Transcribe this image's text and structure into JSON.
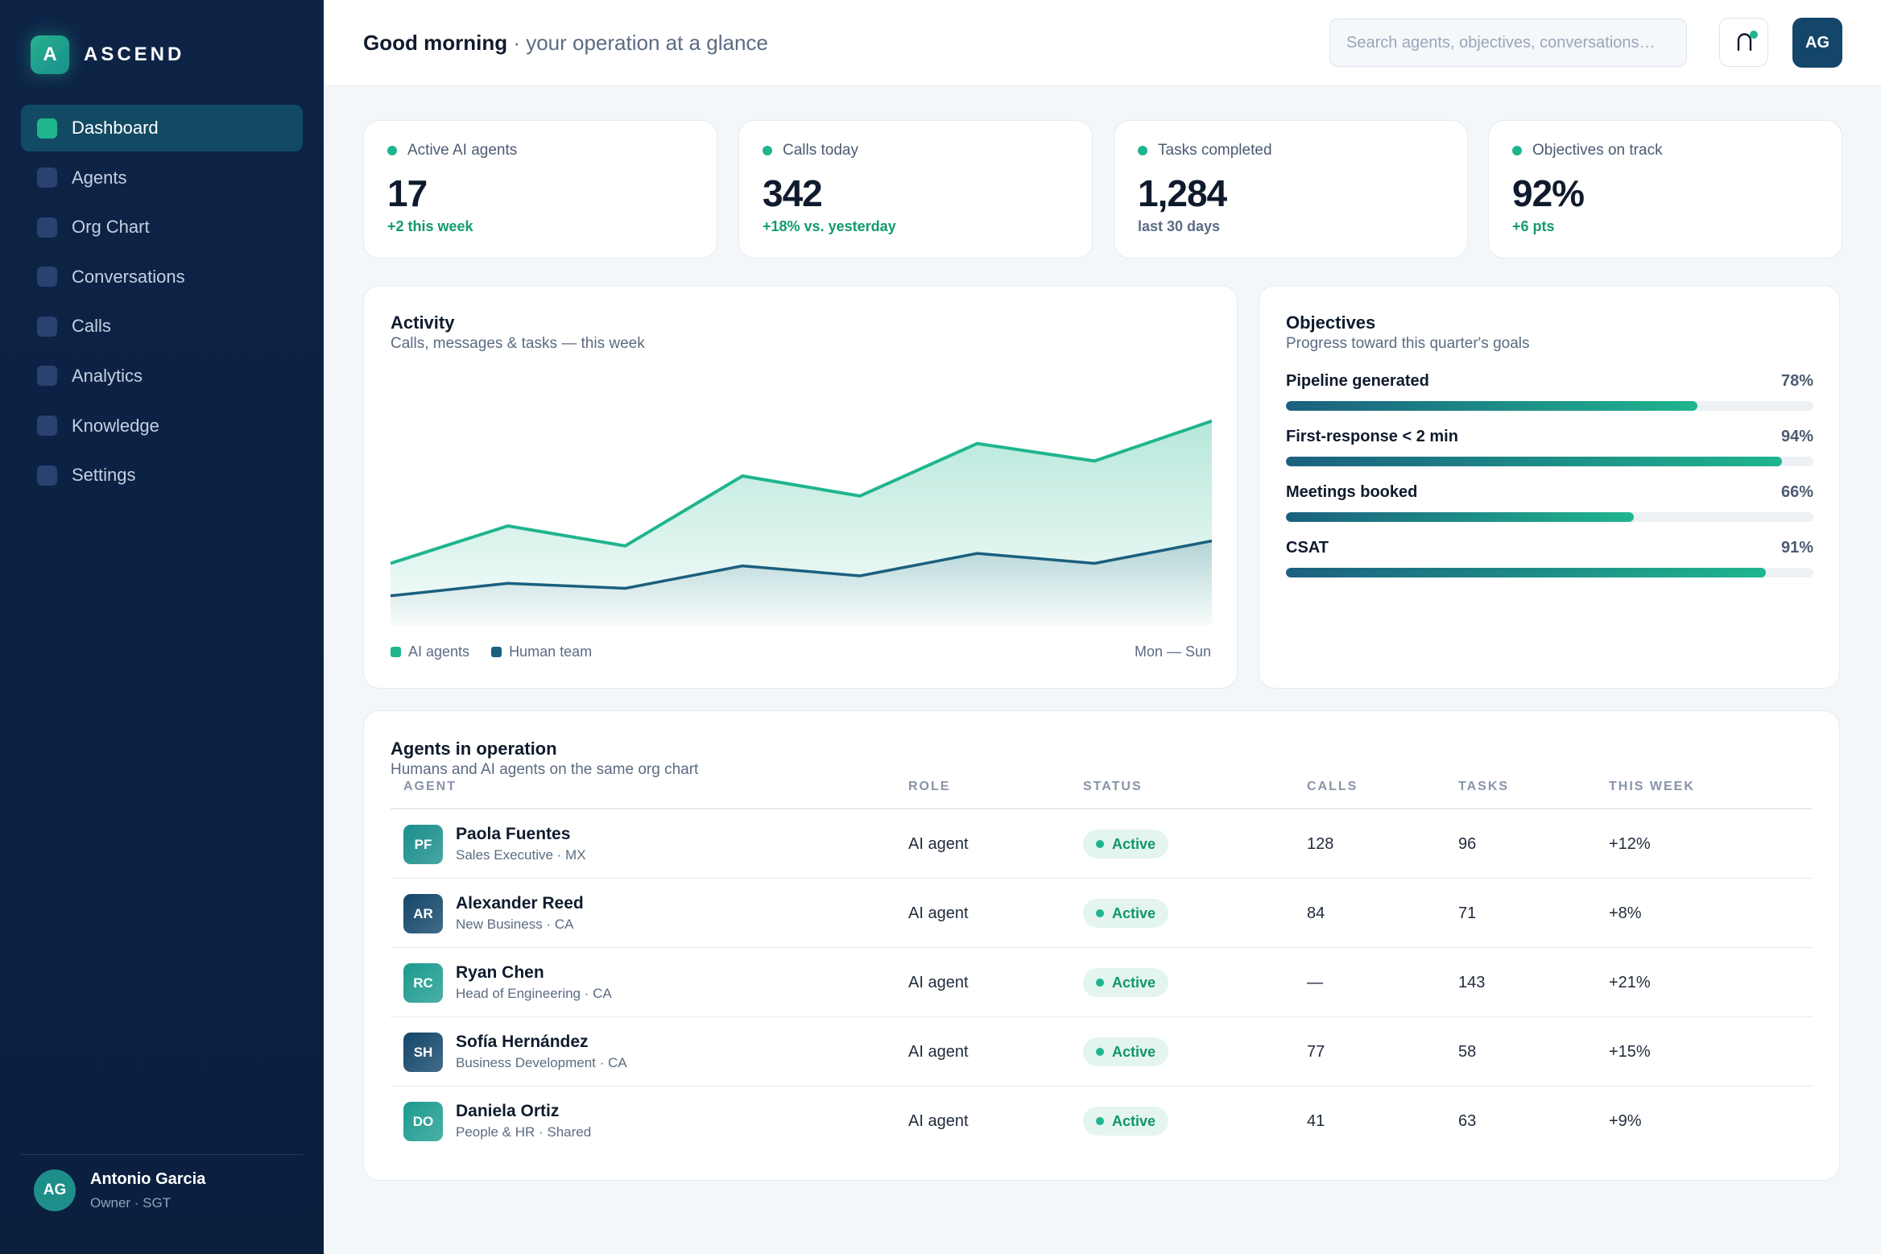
{
  "brand": {
    "mark": "A",
    "name": "ASCEND"
  },
  "nav": [
    {
      "label": "Dashboard",
      "active": true
    },
    {
      "label": "Agents"
    },
    {
      "label": "Org Chart"
    },
    {
      "label": "Conversations"
    },
    {
      "label": "Calls"
    },
    {
      "label": "Analytics"
    },
    {
      "label": "Knowledge"
    },
    {
      "label": "Settings"
    }
  ],
  "user": {
    "initials": "AG",
    "name": "Antonio Garcia",
    "role": "Owner · SGT"
  },
  "header": {
    "greeting": "Good morning",
    "greeting_sub": "· your operation at a glance",
    "search_placeholder": "Search agents, objectives, conversations…",
    "avatar": "AG"
  },
  "kpis": [
    {
      "label": "Active AI agents",
      "value": "17",
      "sub": "+2 this week",
      "tone": "pos"
    },
    {
      "label": "Calls today",
      "value": "342",
      "sub": "+18% vs. yesterday",
      "tone": "pos"
    },
    {
      "label": "Tasks completed",
      "value": "1,284",
      "sub": "last 30 days",
      "tone": "neu"
    },
    {
      "label": "Objectives on track",
      "value": "92%",
      "sub": "+6 pts",
      "tone": "pos"
    }
  ],
  "activity": {
    "title": "Activity",
    "subtitle": "Calls, messages & tasks — this week",
    "range_label": "Mon — Sun"
  },
  "chart_data": {
    "type": "area",
    "title": "Activity",
    "subtitle": "Calls, messages & tasks — this week",
    "x": [
      1,
      2,
      3,
      4,
      5,
      6,
      7,
      8
    ],
    "ylim": [
      0,
      100
    ],
    "grid": false,
    "legend": "bottom-left",
    "series": [
      {
        "name": "AI agents",
        "color": "#1fb58e",
        "values": [
          25,
          40,
          32,
          60,
          52,
          73,
          66,
          82
        ]
      },
      {
        "name": "Human team",
        "color": "#1b607f",
        "values": [
          12,
          17,
          15,
          24,
          20,
          29,
          25,
          34
        ]
      }
    ]
  },
  "objectives": {
    "title": "Objectives",
    "subtitle": "Progress toward this quarter's goals",
    "items": [
      {
        "name": "Pipeline generated",
        "pct": "78%",
        "value": 78
      },
      {
        "name": "First-response < 2 min",
        "pct": "94%",
        "value": 94
      },
      {
        "name": "Meetings booked",
        "pct": "66%",
        "value": 66
      },
      {
        "name": "CSAT",
        "pct": "91%",
        "value": 91
      }
    ]
  },
  "agents": {
    "title": "Agents in operation",
    "subtitle": "Humans and AI agents on the same org chart",
    "columns": [
      "AGENT",
      "ROLE",
      "STATUS",
      "CALLS",
      "TASKS",
      "THIS WEEK"
    ],
    "rows": [
      {
        "initials": "PF",
        "name": "Paola Fuentes",
        "sub": "Sales Executive · MX",
        "role": "AI agent",
        "status": "Active",
        "calls": "128",
        "tasks": "96",
        "week": "+12%",
        "color": "#1a8f8c"
      },
      {
        "initials": "AR",
        "name": "Alexander Reed",
        "sub": "New Business · CA",
        "role": "AI agent",
        "status": "Active",
        "calls": "84",
        "tasks": "71",
        "week": "+8%",
        "color": "#14466a"
      },
      {
        "initials": "RC",
        "name": "Ryan Chen",
        "sub": "Head of Engineering · CA",
        "role": "AI agent",
        "status": "Active",
        "calls": "—",
        "tasks": "143",
        "week": "+21%",
        "color": "#1d9b8f"
      },
      {
        "initials": "SH",
        "name": "Sofía Hernández",
        "sub": "Business Development · CA",
        "role": "AI agent",
        "status": "Active",
        "calls": "77",
        "tasks": "58",
        "week": "+15%",
        "color": "#14466a"
      },
      {
        "initials": "DO",
        "name": "Daniela Ortiz",
        "sub": "People & HR · Shared",
        "role": "AI agent",
        "status": "Active",
        "calls": "41",
        "tasks": "63",
        "week": "+9%",
        "color": "#1d9b8f"
      }
    ]
  }
}
